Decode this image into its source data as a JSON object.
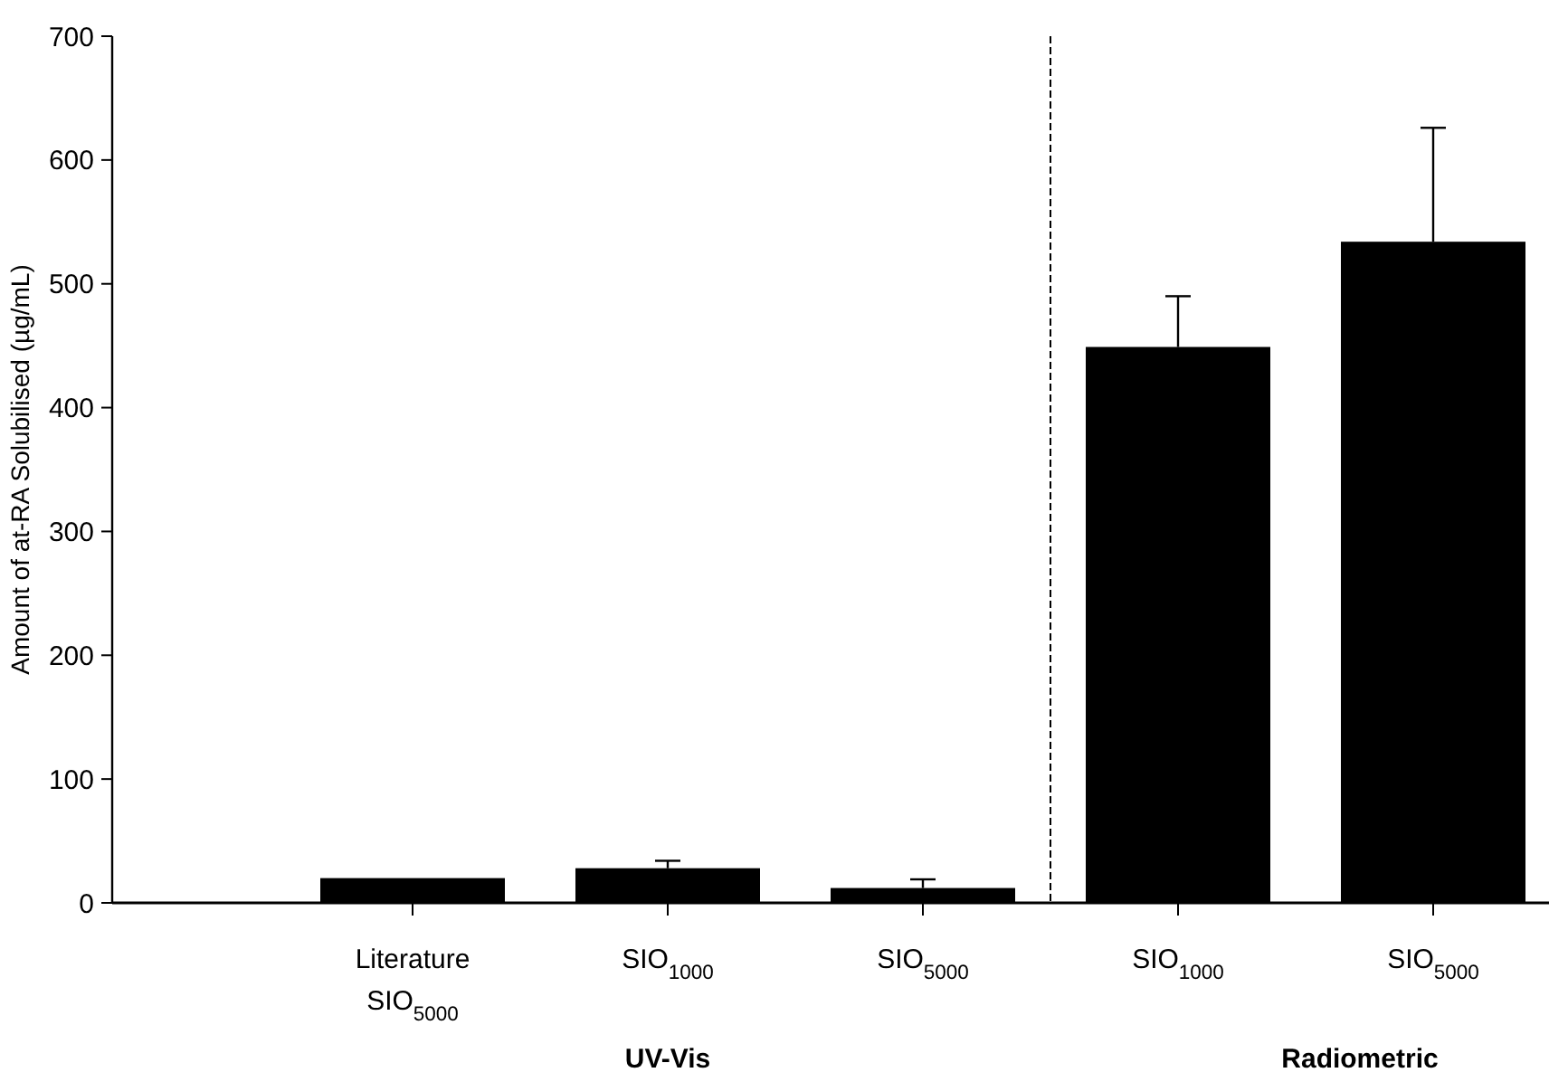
{
  "chart_data": {
    "type": "bar",
    "ylabel": "Amount of at-RA Solubilised (µg/mL)",
    "categories": [
      "Literature SIO$_{5000}$",
      "SIO$_{1000}$",
      "SIO$_{5000}$",
      "SIO$_{1000}$",
      "SIO$_{5000}$"
    ],
    "values": [
      20,
      28,
      12,
      449,
      534
    ],
    "errors": [
      null,
      6,
      7,
      41,
      92
    ],
    "color": "#000000",
    "ylim": [
      0,
      700
    ],
    "yticks": [
      0,
      100,
      200,
      300,
      400,
      500,
      600,
      700
    ],
    "annotations": [
      "UV-Vis",
      "Radiometric"
    ]
  }
}
